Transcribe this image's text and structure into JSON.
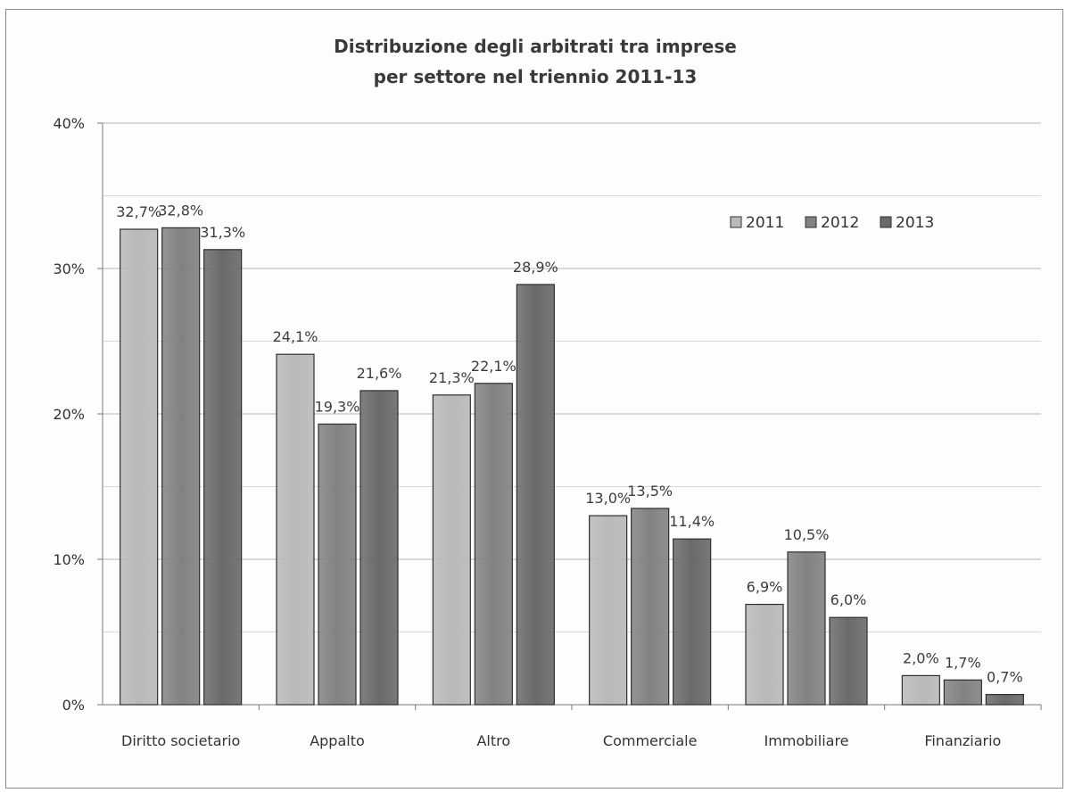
{
  "chart_data": {
    "type": "bar",
    "title": [
      "Distribuzione degli arbitrati tra imprese",
      "per settore nel triennio 2011-13"
    ],
    "xlabel": "",
    "ylabel": "",
    "ylim": [
      0,
      40
    ],
    "yticks": [
      "0%",
      "10%",
      "20%",
      "30%",
      "40%"
    ],
    "grid": true,
    "legend_position": "top-right",
    "categories": [
      "Diritto societario",
      "Appalto",
      "Altro",
      "Commerciale",
      "Immobiliare",
      "Finanziario"
    ],
    "series": [
      {
        "name": "2011",
        "color": "#b9b9b9",
        "values": [
          32.7,
          24.1,
          21.3,
          13.0,
          6.9,
          2.0
        ],
        "labels": [
          "32,7%",
          "24,1%",
          "21,3%",
          "13,0%",
          "6,9%",
          "2,0%"
        ]
      },
      {
        "name": "2012",
        "color": "#828282",
        "values": [
          32.8,
          19.3,
          22.1,
          13.5,
          10.5,
          1.7
        ],
        "labels": [
          "32,8%",
          "19,3%",
          "22,1%",
          "13,5%",
          "10,5%",
          "1,7%"
        ]
      },
      {
        "name": "2013",
        "color": "#6a6a6a",
        "values": [
          31.3,
          21.6,
          28.9,
          11.4,
          6.0,
          0.7
        ],
        "labels": [
          "31,3%",
          "21,6%",
          "28,9%",
          "11,4%",
          "6,0%",
          "0,7%"
        ]
      }
    ]
  }
}
